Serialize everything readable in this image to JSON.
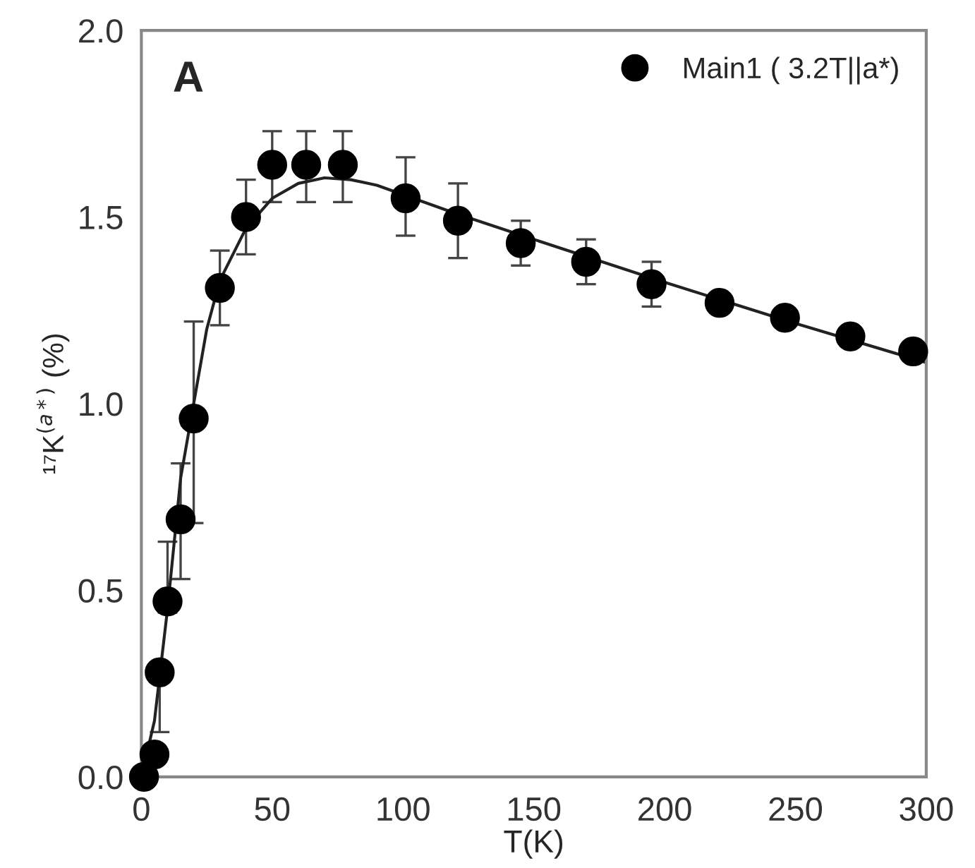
{
  "chart_data": {
    "type": "scatter",
    "xlabel": "T(K)",
    "ylabel": "¹⁷K$^{(a*)}$ (%)",
    "annotations": [
      "A"
    ],
    "xlim": [
      0,
      300
    ],
    "xticks": [
      0,
      50,
      100,
      150,
      200,
      250,
      300
    ],
    "ylim": [
      0,
      2
    ],
    "yticks": [
      {
        "value": 0,
        "label": "0.0"
      },
      {
        "value": 0.5,
        "label": "0.5"
      },
      {
        "value": 1,
        "label": "1.0"
      },
      {
        "value": 1.5,
        "label": "1.5"
      },
      {
        "value": 2,
        "label": "2.0"
      }
    ],
    "grid": false,
    "legend": "top right",
    "series": [
      {
        "name": "Main1 ( 3.2T||a*)",
        "color": "#000000",
        "marker": "circle",
        "x": [
          1,
          5,
          7,
          10,
          15,
          20,
          30,
          40,
          50,
          63,
          77,
          101,
          121,
          145,
          170,
          195,
          221,
          246,
          271,
          295
        ],
        "values": [
          0.0,
          0.06,
          0.28,
          0.47,
          0.69,
          0.96,
          1.31,
          1.5,
          1.64,
          1.64,
          1.64,
          1.55,
          1.49,
          1.43,
          1.38,
          1.32,
          1.27,
          1.23,
          1.18,
          1.14
        ],
        "errors": [
          null,
          null,
          [
            0.12,
            0.28
          ],
          [
            0.44,
            0.63
          ],
          [
            0.53,
            0.84
          ],
          [
            0.68,
            1.22
          ],
          [
            1.21,
            1.41
          ],
          [
            1.4,
            1.6
          ],
          [
            1.54,
            1.73
          ],
          [
            1.54,
            1.73
          ],
          [
            1.54,
            1.73
          ],
          [
            1.45,
            1.66
          ],
          [
            1.39,
            1.59
          ],
          [
            1.37,
            1.49
          ],
          [
            1.32,
            1.44
          ],
          [
            1.26,
            1.38
          ],
          null,
          null,
          null,
          null
        ]
      },
      {
        "type": "line",
        "color": "#222222",
        "marker": "none",
        "line_style": "solid",
        "x": [
          0,
          5,
          10,
          15,
          20,
          25,
          30,
          40,
          50,
          60,
          70,
          80,
          90,
          100,
          120,
          150,
          200,
          250,
          300
        ],
        "values": [
          0,
          0.15,
          0.45,
          0.8,
          1.0,
          1.2,
          1.33,
          1.47,
          1.55,
          1.59,
          1.605,
          1.6,
          1.585,
          1.56,
          1.51,
          1.44,
          1.325,
          1.215,
          1.11
        ]
      }
    ]
  }
}
